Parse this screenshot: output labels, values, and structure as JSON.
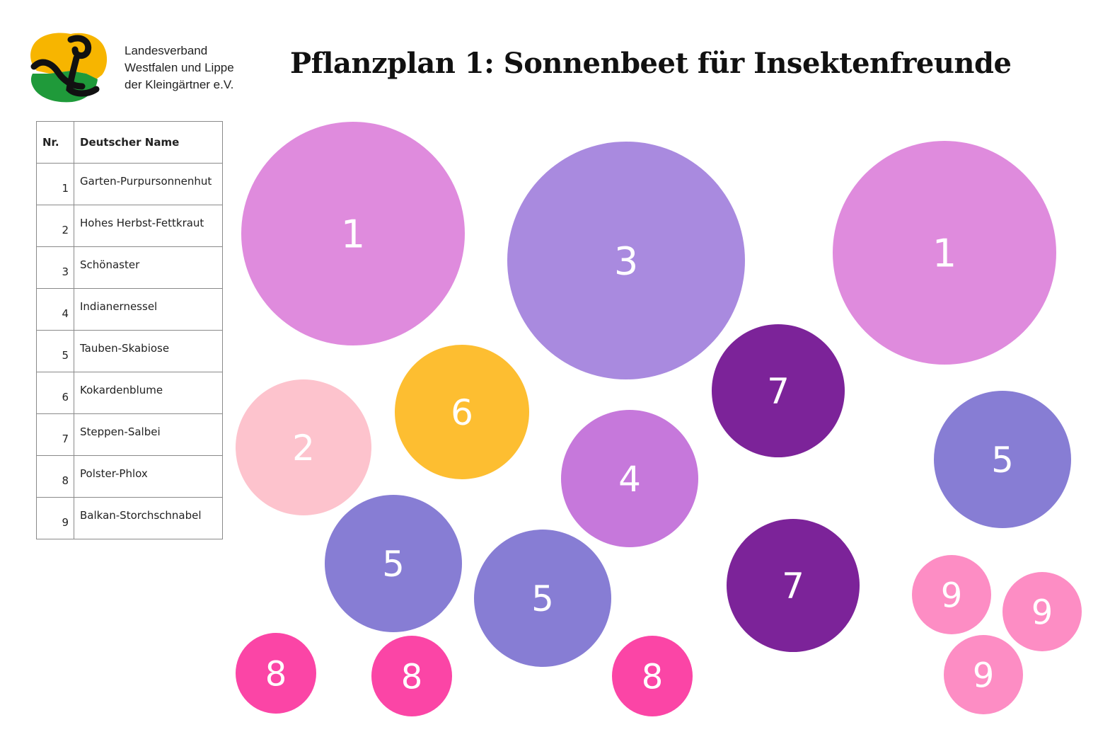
{
  "header": {
    "org_lines": [
      "Landesverband",
      "Westfalen und Lippe",
      "der Kleingärtner e.V."
    ],
    "title": "Pflanzplan 1: Sonnenbeet für Insektenfreunde"
  },
  "logo": {
    "icon": "kleingaertner-logo",
    "colors": {
      "sun": "#f7b500",
      "leaf": "#1f9a3a",
      "stroke": "#111111"
    }
  },
  "legend": {
    "col_nr": "Nr.",
    "col_name": "Deutscher Name",
    "rows": [
      {
        "nr": "1",
        "name": "Garten-Purpursonnenhut"
      },
      {
        "nr": "2",
        "name": "Hohes Herbst-Fettkraut"
      },
      {
        "nr": "3",
        "name": "Schönaster"
      },
      {
        "nr": "4",
        "name": "Indianernessel"
      },
      {
        "nr": "5",
        "name": "Tauben-Skabiose"
      },
      {
        "nr": "6",
        "name": "Kokardenblume"
      },
      {
        "nr": "7",
        "name": "Steppen-Salbei"
      },
      {
        "nr": "8",
        "name": "Polster-Phlox"
      },
      {
        "nr": "9",
        "name": "Balkan-Storchschnabel"
      }
    ]
  },
  "plant_colors": {
    "1": "#df8bdd",
    "2": "#fdc3cd",
    "3": "#a98adf",
    "4": "#c678db",
    "5": "#877dd4",
    "6": "#fdbe31",
    "7": "#7c2399",
    "8": "#fb45a6",
    "9": "#fd8dc4"
  },
  "bed_plants": [
    {
      "nr": "1"
    },
    {
      "nr": "3"
    },
    {
      "nr": "1"
    },
    {
      "nr": "2"
    },
    {
      "nr": "6"
    },
    {
      "nr": "7"
    },
    {
      "nr": "4"
    },
    {
      "nr": "5"
    },
    {
      "nr": "5"
    },
    {
      "nr": "5"
    },
    {
      "nr": "7"
    },
    {
      "nr": "9"
    },
    {
      "nr": "9"
    },
    {
      "nr": "9"
    },
    {
      "nr": "8"
    },
    {
      "nr": "8"
    },
    {
      "nr": "8"
    }
  ]
}
